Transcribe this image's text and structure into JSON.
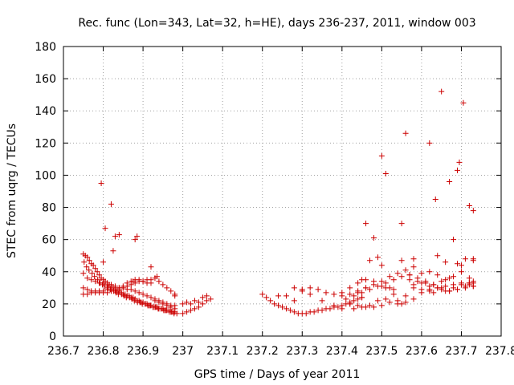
{
  "chart_data": {
    "type": "scatter",
    "title": "Rec. func (Lon=343, Lat=32, h=HE), days 236-237, 2011, window 003",
    "xlabel": "GPS time / Days of year 2011",
    "ylabel": "STEC from uqrg / TECUs",
    "xlim": [
      236.7,
      237.8
    ],
    "ylim": [
      0,
      180
    ],
    "xticks": [
      "236.7",
      "236.8",
      "236.9",
      "237",
      "237.1",
      "237.2",
      "237.3",
      "237.4",
      "237.5",
      "237.6",
      "237.7",
      "237.8"
    ],
    "yticks": [
      "0",
      "20",
      "40",
      "60",
      "80",
      "100",
      "120",
      "140",
      "160",
      "180"
    ],
    "grid": true,
    "marker": "plus",
    "color": "#cc0000",
    "series": [
      {
        "x": [
          236.75,
          236.755,
          236.76,
          236.765,
          236.77,
          236.775,
          236.78,
          236.785,
          236.79,
          236.795,
          236.8,
          236.805,
          236.81,
          236.815,
          236.82,
          236.825,
          236.83,
          236.835,
          236.84,
          236.845,
          236.85,
          236.855,
          236.86,
          236.865,
          236.87,
          236.875,
          236.88,
          236.885,
          236.89,
          236.895,
          236.9,
          236.905,
          236.91,
          236.915,
          236.92,
          236.925,
          236.93,
          236.935,
          236.94,
          236.945,
          236.95,
          236.955,
          236.96,
          236.965,
          236.97,
          236.975,
          236.98,
          236.985,
          236.75,
          236.76,
          236.77,
          236.78,
          236.79,
          236.8,
          236.81,
          236.82,
          236.83,
          236.84,
          236.85,
          236.86,
          236.87,
          236.88,
          236.89,
          236.9,
          236.91,
          236.92,
          236.93,
          236.94,
          236.95,
          236.96,
          236.97,
          236.98,
          236.75,
          236.76,
          236.77,
          236.78,
          236.79,
          236.8,
          236.81,
          236.82,
          236.83,
          236.84,
          236.85,
          236.86,
          236.87,
          236.88,
          236.89,
          236.9,
          236.91,
          236.92,
          236.93,
          236.94,
          236.95,
          236.96,
          236.97,
          236.98,
          236.75,
          236.76,
          236.77,
          236.78,
          236.79,
          236.8,
          236.81,
          236.82,
          236.83,
          236.84,
          236.85,
          236.86,
          236.87,
          236.88,
          236.89,
          236.9,
          236.91,
          236.92,
          236.93,
          236.94,
          236.95,
          236.96,
          236.97,
          236.98,
          236.752,
          236.758,
          236.764,
          236.772,
          236.778,
          236.786,
          236.792,
          236.798,
          236.804,
          236.812,
          236.818,
          236.826,
          236.832,
          236.838,
          236.846,
          236.852,
          236.858,
          236.866,
          236.872,
          236.878,
          236.886,
          236.892,
          236.898,
          236.906,
          236.912,
          236.918,
          236.926,
          236.932,
          236.938,
          236.946,
          236.952,
          236.958,
          236.966,
          236.972,
          236.978,
          236.795,
          236.8,
          236.805,
          236.82,
          236.825,
          236.83,
          236.84,
          236.875,
          236.88,
          236.885,
          236.92,
          236.935,
          236.98,
          237.0,
          237.01,
          237.02,
          237.03,
          237.04,
          237.05,
          237.06,
          237.07,
          237.0,
          237.01,
          237.02,
          237.03,
          237.04,
          237.05,
          237.06,
          237.2,
          237.21,
          237.22,
          237.23,
          237.24,
          237.25,
          237.26,
          237.27,
          237.28,
          237.29,
          237.3,
          237.31,
          237.32,
          237.33,
          237.34,
          237.35,
          237.36,
          237.37,
          237.38,
          237.39,
          237.4,
          237.41,
          237.42,
          237.43,
          237.44,
          237.45,
          237.24,
          237.26,
          237.28,
          237.3,
          237.32,
          237.34,
          237.36,
          237.38,
          237.4,
          237.42,
          237.44,
          237.46,
          237.28,
          237.3,
          237.32,
          237.35,
          237.38,
          237.4,
          237.42,
          237.45,
          237.4,
          237.42,
          237.44,
          237.46,
          237.48,
          237.5,
          237.52,
          237.54,
          237.56,
          237.58,
          237.6,
          237.62,
          237.64,
          237.66,
          237.68,
          237.7,
          237.72,
          237.73,
          237.41,
          237.43,
          237.45,
          237.47,
          237.49,
          237.51,
          237.53,
          237.55,
          237.57,
          237.59,
          237.61,
          237.63,
          237.65,
          237.67,
          237.69,
          237.71,
          237.73,
          237.42,
          237.44,
          237.46,
          237.48,
          237.5,
          237.52,
          237.54,
          237.56,
          237.58,
          237.6,
          237.62,
          237.64,
          237.66,
          237.68,
          237.7,
          237.72,
          237.73,
          237.43,
          237.45,
          237.47,
          237.49,
          237.51,
          237.53,
          237.55,
          237.57,
          237.59,
          237.61,
          237.63,
          237.65,
          237.67,
          237.69,
          237.71,
          237.73,
          237.44,
          237.46,
          237.48,
          237.5,
          237.52,
          237.54,
          237.56,
          237.58,
          237.6,
          237.62,
          237.64,
          237.66,
          237.68,
          237.7,
          237.72,
          237.73,
          237.45,
          237.47,
          237.49,
          237.5,
          237.51,
          237.53,
          237.55,
          237.57,
          237.58,
          237.6,
          237.62,
          237.63,
          237.64,
          237.65,
          237.66,
          237.67,
          237.68,
          237.69,
          237.7,
          237.71,
          237.72,
          237.73,
          237.46,
          237.48,
          237.5,
          237.51,
          237.55,
          237.56,
          237.58,
          237.62,
          237.635,
          237.65,
          237.67,
          237.69,
          237.695,
          237.705,
          237.72,
          237.73
        ],
        "y": [
          51,
          50,
          49,
          47,
          45,
          44,
          42,
          40,
          38,
          36,
          35,
          34,
          33,
          32,
          31,
          30,
          29,
          28,
          28,
          27,
          26,
          26,
          25,
          25,
          24,
          24,
          23,
          22,
          22,
          21,
          21,
          20,
          20,
          19,
          19,
          18,
          18,
          18,
          17,
          17,
          17,
          16,
          16,
          16,
          15,
          15,
          15,
          14,
          39,
          36,
          35,
          34,
          33,
          33,
          32,
          32,
          31,
          30,
          30,
          29,
          29,
          28,
          27,
          26,
          25,
          24,
          23,
          22,
          21,
          20,
          19,
          19,
          30,
          29,
          28,
          28,
          27,
          27,
          27,
          28,
          28,
          29,
          30,
          31,
          32,
          33,
          34,
          34,
          35,
          35,
          36,
          34,
          32,
          30,
          28,
          26,
          26,
          26,
          27,
          27,
          28,
          28,
          29,
          29,
          30,
          30,
          31,
          33,
          34,
          35,
          35,
          34,
          33,
          33,
          22,
          21,
          20,
          19,
          18,
          17,
          46,
          43,
          41,
          39,
          37,
          35,
          33,
          32,
          31,
          30,
          29,
          28,
          27,
          26,
          26,
          25,
          24,
          24,
          23,
          22,
          21,
          21,
          20,
          20,
          19,
          19,
          18,
          18,
          17,
          17,
          16,
          16,
          15,
          15,
          14,
          95,
          46,
          67,
          82,
          53,
          62,
          63,
          34,
          60,
          62,
          43,
          37,
          25,
          20,
          21,
          20,
          22,
          21,
          24,
          25,
          23,
          14,
          15,
          16,
          17,
          18,
          20,
          22,
          26,
          24,
          22,
          20,
          19,
          18,
          17,
          16,
          15,
          14,
          14,
          14,
          15,
          15,
          16,
          16,
          17,
          17,
          18,
          18,
          19,
          20,
          21,
          22,
          23,
          24,
          25,
          25,
          22,
          28,
          30,
          29,
          27,
          26,
          25,
          26,
          28,
          30,
          30,
          29,
          26,
          22,
          19,
          17,
          20,
          24,
          27,
          30,
          33,
          35,
          34,
          31,
          30,
          22,
          25,
          30,
          33,
          31,
          30,
          28,
          30,
          32,
          33,
          33,
          23,
          25,
          27,
          29,
          31,
          33,
          35,
          37,
          38,
          36,
          34,
          32,
          30,
          28,
          29,
          30,
          31,
          20,
          19,
          18,
          18,
          19,
          21,
          20,
          21,
          23,
          27,
          29,
          30,
          31,
          32,
          33,
          32,
          31,
          17,
          18,
          19,
          22,
          23,
          26,
          20,
          35,
          34,
          33,
          32,
          29,
          28,
          29,
          31,
          34,
          27,
          30,
          32,
          34,
          37,
          39,
          41,
          43,
          39,
          40,
          38,
          35,
          37,
          40,
          36,
          48,
          35,
          47,
          49,
          44,
          30,
          29,
          47,
          38,
          48,
          29,
          28,
          27,
          50,
          34,
          46,
          36,
          60,
          45,
          44,
          48,
          33,
          47,
          70,
          61,
          112,
          101,
          70,
          126,
          32,
          120,
          85,
          152,
          96,
          103,
          108,
          145,
          81,
          78
        ]
      }
    ]
  }
}
